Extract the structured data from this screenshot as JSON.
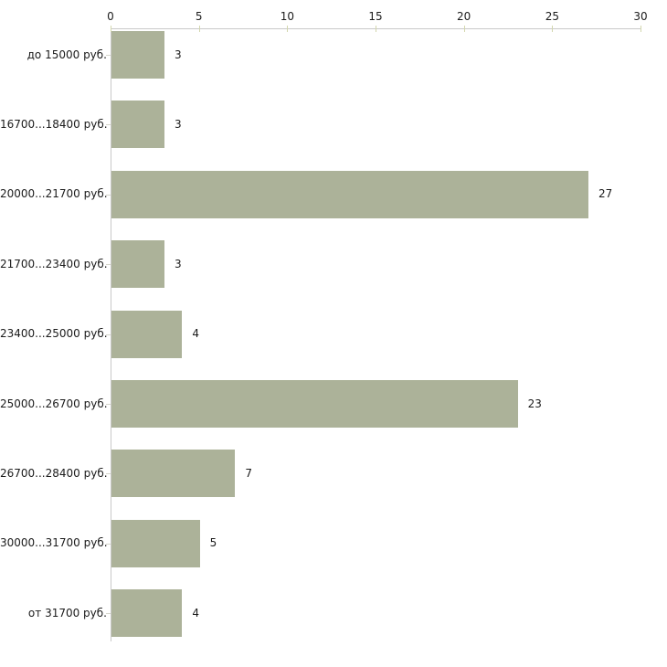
{
  "chart_data": {
    "type": "bar",
    "orientation": "horizontal",
    "title": "",
    "xlabel": "",
    "ylabel": "",
    "categories": [
      "до 15000 руб.",
      "16700...18400 руб.",
      "20000...21700 руб.",
      "21700...23400 руб.",
      "23400...25000 руб.",
      "25000...26700 руб.",
      "26700...28400 руб.",
      "30000...31700 руб.",
      "от 31700 руб."
    ],
    "values": [
      3,
      3,
      27,
      3,
      4,
      23,
      7,
      5,
      4
    ],
    "value_labels": [
      "3",
      "3",
      "27",
      "3",
      "4",
      "23",
      "7",
      "5",
      "4"
    ],
    "x_ticks": [
      0,
      5,
      10,
      15,
      20,
      25,
      30
    ],
    "x_tick_labels": [
      "0",
      "5",
      "10",
      "15",
      "20",
      "25",
      "30"
    ],
    "xlim": [
      0,
      30
    ],
    "axis_position": "top",
    "grid": false,
    "legend": "none",
    "colors": {
      "bar_fill": "#acb299",
      "axis_line": "#c9c9c9",
      "x_tick": "#d3d7ae",
      "category_tick": "#d6d6cc",
      "text": "#1b1b1b",
      "background": "#ffffff"
    }
  }
}
